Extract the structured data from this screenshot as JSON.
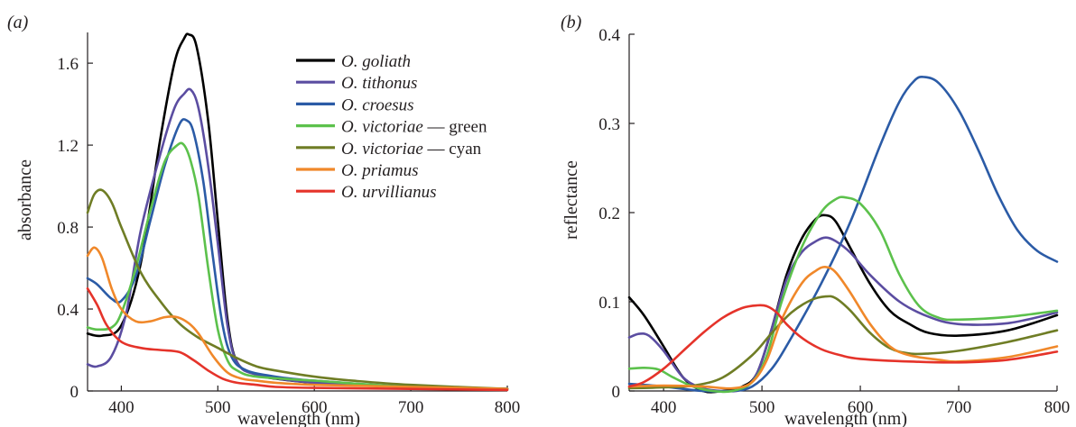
{
  "chart_data": [
    {
      "type": "line",
      "panel_label": "(a)",
      "xlabel": "wavelength (nm)",
      "ylabel": "absorbance",
      "xlim": [
        365,
        800
      ],
      "ylim": [
        0,
        1.75
      ],
      "xticks": [
        400,
        500,
        600,
        700,
        800
      ],
      "yticks": [
        0,
        0.4,
        0.8,
        1.2,
        1.6
      ],
      "ytick_labels": [
        "0",
        "0.4",
        "0.8",
        "1.2",
        "1.6"
      ],
      "grid": false,
      "legend_position": "top-right",
      "series": [
        {
          "name": "O. goliath",
          "color": "#000000",
          "x": [
            365,
            380,
            400,
            420,
            440,
            455,
            465,
            470,
            478,
            490,
            500,
            510,
            520,
            540,
            560,
            600,
            650,
            700,
            750,
            800
          ],
          "y": [
            0.28,
            0.27,
            0.32,
            0.62,
            1.22,
            1.6,
            1.72,
            1.74,
            1.68,
            1.32,
            0.83,
            0.35,
            0.14,
            0.08,
            0.06,
            0.04,
            0.03,
            0.02,
            0.015,
            0.01
          ]
        },
        {
          "name": "O. tithonus",
          "color": "#5b4da1",
          "x": [
            365,
            375,
            390,
            405,
            420,
            440,
            455,
            465,
            472,
            480,
            490,
            500,
            510,
            520,
            540,
            600,
            700,
            800
          ],
          "y": [
            0.13,
            0.12,
            0.17,
            0.38,
            0.78,
            1.15,
            1.38,
            1.45,
            1.47,
            1.38,
            1.1,
            0.72,
            0.32,
            0.14,
            0.08,
            0.04,
            0.02,
            0.01
          ]
        },
        {
          "name": "O. croesus",
          "color": "#2b5ba6",
          "x": [
            365,
            375,
            390,
            400,
            415,
            430,
            445,
            460,
            468,
            475,
            485,
            495,
            505,
            515,
            530,
            560,
            600,
            700,
            800
          ],
          "y": [
            0.55,
            0.52,
            0.45,
            0.44,
            0.56,
            0.83,
            1.1,
            1.3,
            1.32,
            1.26,
            1.02,
            0.65,
            0.32,
            0.16,
            0.1,
            0.07,
            0.05,
            0.02,
            0.01
          ]
        },
        {
          "name": "O. victoriae — green",
          "color": "#5cc14c",
          "x": [
            365,
            375,
            390,
            400,
            415,
            430,
            445,
            458,
            465,
            472,
            480,
            490,
            500,
            510,
            520,
            540,
            600,
            700,
            800
          ],
          "y": [
            0.31,
            0.3,
            0.31,
            0.38,
            0.6,
            0.88,
            1.12,
            1.2,
            1.2,
            1.12,
            0.95,
            0.6,
            0.3,
            0.15,
            0.1,
            0.07,
            0.05,
            0.02,
            0.01
          ]
        },
        {
          "name": "O. victoriae — cyan",
          "color": "#6f7d25",
          "x": [
            365,
            372,
            380,
            390,
            400,
            420,
            440,
            460,
            480,
            500,
            520,
            540,
            560,
            600,
            640,
            700,
            800
          ],
          "y": [
            0.87,
            0.96,
            0.98,
            0.92,
            0.8,
            0.58,
            0.44,
            0.33,
            0.26,
            0.21,
            0.16,
            0.12,
            0.1,
            0.07,
            0.05,
            0.03,
            0.01
          ]
        },
        {
          "name": "O. priamus",
          "color": "#f0882a",
          "x": [
            365,
            372,
            380,
            390,
            400,
            415,
            430,
            445,
            458,
            470,
            480,
            495,
            510,
            525,
            540,
            560,
            600,
            700,
            800
          ],
          "y": [
            0.66,
            0.7,
            0.65,
            0.5,
            0.4,
            0.34,
            0.34,
            0.36,
            0.36,
            0.33,
            0.28,
            0.17,
            0.09,
            0.06,
            0.05,
            0.04,
            0.03,
            0.02,
            0.01
          ]
        },
        {
          "name": "O. urvillianus",
          "color": "#e5332a",
          "x": [
            365,
            375,
            385,
            400,
            420,
            440,
            460,
            475,
            490,
            505,
            520,
            540,
            560,
            600,
            700,
            800
          ],
          "y": [
            0.5,
            0.42,
            0.32,
            0.24,
            0.21,
            0.2,
            0.19,
            0.15,
            0.1,
            0.06,
            0.04,
            0.03,
            0.02,
            0.015,
            0.01,
            0.005
          ]
        }
      ]
    },
    {
      "type": "line",
      "panel_label": "(b)",
      "xlabel": "wavelength (nm)",
      "ylabel": "reflectance",
      "xlim": [
        365,
        800
      ],
      "ylim": [
        0,
        0.4
      ],
      "xticks": [
        400,
        500,
        600,
        700,
        800
      ],
      "yticks": [
        0,
        0.1,
        0.2,
        0.3,
        0.4
      ],
      "ytick_labels": [
        "0",
        "0.1",
        "0.2",
        "0.3",
        "0.4"
      ],
      "grid": false,
      "series": [
        {
          "name": "O. goliath",
          "color": "#000000",
          "x": [
            365,
            380,
            400,
            420,
            440,
            460,
            480,
            495,
            510,
            525,
            540,
            555,
            565,
            575,
            590,
            610,
            630,
            650,
            670,
            700,
            750,
            800
          ],
          "y": [
            0.105,
            0.085,
            0.05,
            0.015,
            0.0,
            0.0,
            0.005,
            0.02,
            0.07,
            0.13,
            0.17,
            0.193,
            0.197,
            0.19,
            0.16,
            0.12,
            0.09,
            0.075,
            0.065,
            0.062,
            0.068,
            0.085
          ]
        },
        {
          "name": "O. tithonus",
          "color": "#5b4da1",
          "x": [
            365,
            375,
            385,
            400,
            420,
            440,
            460,
            480,
            495,
            510,
            525,
            540,
            555,
            565,
            575,
            590,
            610,
            640,
            670,
            700,
            750,
            800
          ],
          "y": [
            0.06,
            0.064,
            0.062,
            0.045,
            0.015,
            0.003,
            0.0,
            0.002,
            0.02,
            0.07,
            0.125,
            0.155,
            0.168,
            0.172,
            0.168,
            0.155,
            0.13,
            0.1,
            0.083,
            0.075,
            0.076,
            0.088
          ]
        },
        {
          "name": "O. croesus",
          "color": "#2b5ba6",
          "x": [
            365,
            400,
            440,
            470,
            490,
            510,
            530,
            560,
            590,
            620,
            640,
            655,
            665,
            680,
            700,
            720,
            740,
            760,
            780,
            800
          ],
          "y": [
            0.008,
            0.005,
            0.0,
            0.0,
            0.005,
            0.025,
            0.06,
            0.12,
            0.19,
            0.275,
            0.325,
            0.348,
            0.352,
            0.345,
            0.315,
            0.27,
            0.22,
            0.18,
            0.157,
            0.145
          ]
        },
        {
          "name": "O. victoriae — green",
          "color": "#5cc14c",
          "x": [
            365,
            380,
            395,
            410,
            430,
            450,
            470,
            490,
            505,
            520,
            540,
            560,
            575,
            585,
            600,
            620,
            640,
            660,
            680,
            700,
            750,
            800
          ],
          "y": [
            0.025,
            0.026,
            0.024,
            0.015,
            0.005,
            0.0,
            0.0,
            0.01,
            0.04,
            0.1,
            0.16,
            0.2,
            0.215,
            0.217,
            0.21,
            0.18,
            0.13,
            0.095,
            0.082,
            0.08,
            0.083,
            0.09
          ]
        },
        {
          "name": "O. victoriae — cyan",
          "color": "#6f7d25",
          "x": [
            365,
            400,
            430,
            460,
            490,
            510,
            530,
            550,
            565,
            575,
            590,
            610,
            630,
            650,
            670,
            700,
            750,
            800
          ],
          "y": [
            0.003,
            0.004,
            0.006,
            0.015,
            0.04,
            0.065,
            0.088,
            0.102,
            0.106,
            0.104,
            0.09,
            0.065,
            0.048,
            0.042,
            0.042,
            0.045,
            0.055,
            0.068
          ]
        },
        {
          "name": "O. priamus",
          "color": "#f0882a",
          "x": [
            365,
            400,
            440,
            470,
            490,
            505,
            520,
            540,
            555,
            565,
            575,
            590,
            610,
            630,
            650,
            680,
            700,
            750,
            800
          ],
          "y": [
            0.005,
            0.006,
            0.005,
            0.003,
            0.01,
            0.035,
            0.08,
            0.12,
            0.135,
            0.139,
            0.133,
            0.11,
            0.075,
            0.05,
            0.04,
            0.035,
            0.033,
            0.038,
            0.05
          ]
        },
        {
          "name": "O. urvillianus",
          "color": "#e5332a",
          "x": [
            365,
            380,
            400,
            420,
            440,
            460,
            480,
            495,
            505,
            515,
            525,
            540,
            560,
            580,
            600,
            650,
            700,
            750,
            800
          ],
          "y": [
            0.005,
            0.01,
            0.025,
            0.045,
            0.065,
            0.082,
            0.093,
            0.096,
            0.095,
            0.088,
            0.075,
            0.06,
            0.047,
            0.04,
            0.036,
            0.033,
            0.032,
            0.035,
            0.044
          ]
        }
      ]
    }
  ]
}
